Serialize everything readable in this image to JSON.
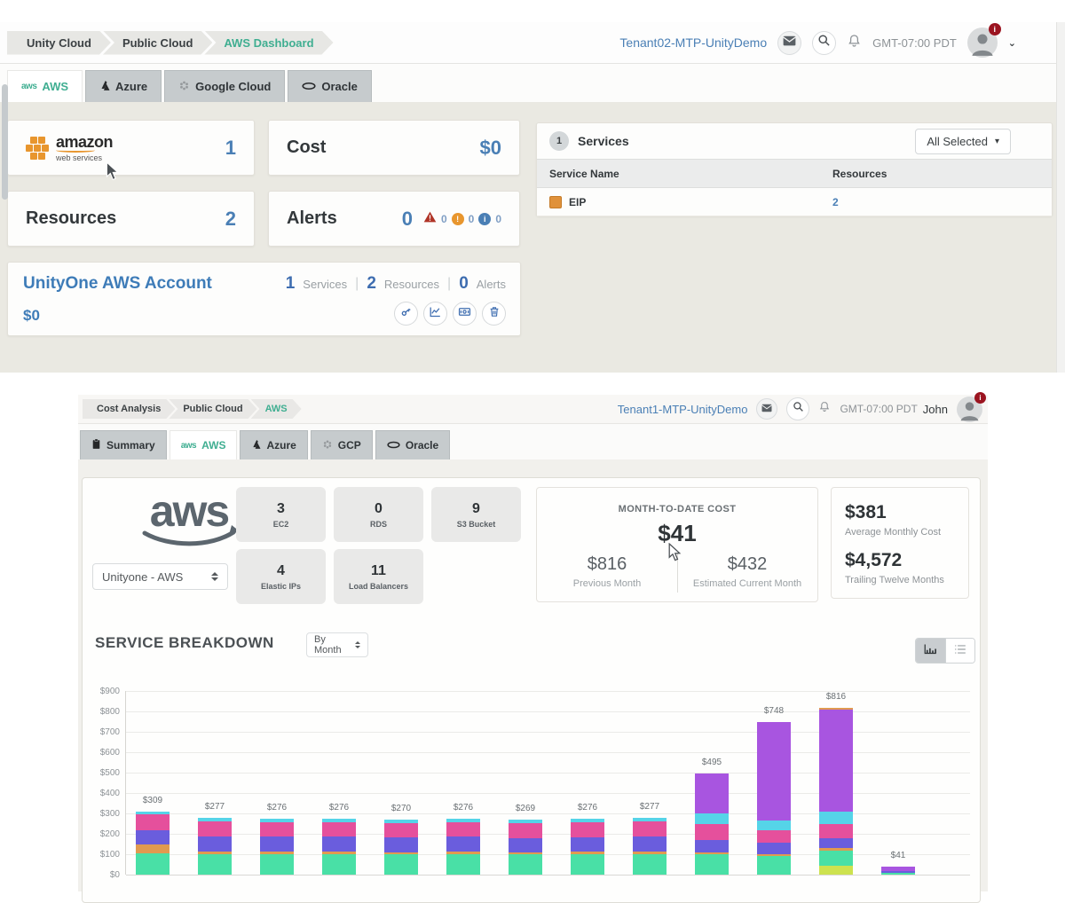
{
  "accent": {
    "teal": "#3fae91",
    "blue": "#4a7fb5"
  },
  "shot1": {
    "breadcrumb": {
      "items": [
        "Unity Cloud",
        "Public Cloud",
        "AWS Dashboard"
      ]
    },
    "header": {
      "tenant": "Tenant02-MTP-UnityDemo",
      "timezone": "GMT-07:00 PDT"
    },
    "tabs": {
      "aws": "AWS",
      "azure": "Azure",
      "gcp": "Google Cloud",
      "oracle": "Oracle"
    },
    "provider_card": {
      "brand": "amazon",
      "brand_sub": "web services",
      "count": "1"
    },
    "cost_card": {
      "label": "Cost",
      "value": "$0"
    },
    "resources_card": {
      "label": "Resources",
      "value": "2"
    },
    "alerts_card": {
      "label": "Alerts",
      "value": "0",
      "critical_count": "0",
      "warning_count": "0",
      "info_count": "0"
    },
    "services_panel": {
      "count": "1",
      "title": "Services",
      "filter_label": "All Selected",
      "col_service": "Service Name",
      "col_resources": "Resources",
      "row": {
        "name": "EIP",
        "resources": "2"
      }
    },
    "account_card": {
      "title": "UnityOne AWS Account",
      "cost": "$0",
      "services_value": "1",
      "services_label": "Services",
      "resources_value": "2",
      "resources_label": "Resources",
      "alerts_value": "0",
      "alerts_label": "Alerts"
    }
  },
  "shot2": {
    "breadcrumb": {
      "items": [
        "Cost Analysis",
        "Public Cloud",
        "AWS"
      ]
    },
    "header": {
      "tenant": "Tenant1-MTP-UnityDemo",
      "timezone": "GMT-07:00 PDT",
      "user": "John"
    },
    "tabs": {
      "summary": "Summary",
      "aws": "AWS",
      "azure": "Azure",
      "gcp": "GCP",
      "oracle": "Oracle"
    },
    "aws_logo": "aws",
    "account_select": {
      "value": "Unityone - AWS"
    },
    "tiles": [
      {
        "value": "3",
        "label": "EC2"
      },
      {
        "value": "0",
        "label": "RDS"
      },
      {
        "value": "9",
        "label": "S3 Bucket"
      },
      {
        "value": "4",
        "label": "Elastic IPs"
      },
      {
        "value": "11",
        "label": "Load Balancers"
      }
    ],
    "mtd_card": {
      "title": "MONTH-TO-DATE COST",
      "value": "$41",
      "previous_value": "$816",
      "previous_label": "Previous Month",
      "estimated_value": "$432",
      "estimated_label": "Estimated Current Month"
    },
    "summary_card": {
      "avg_value": "$381",
      "avg_label": "Average Monthly Cost",
      "ttm_value": "$4,572",
      "ttm_label": "Trailing Twelve Months"
    },
    "breakdown": {
      "title": "SERVICE BREAKDOWN",
      "period": "By Month"
    }
  },
  "chart_data": {
    "type": "bar",
    "stacked": true,
    "title": "SERVICE BREAKDOWN",
    "ylim": [
      0,
      900
    ],
    "y_ticks": [
      "$900",
      "$800",
      "$700",
      "$600",
      "$500",
      "$400",
      "$300",
      "$200",
      "$100",
      "$0"
    ],
    "grid": true,
    "palette": {
      "mint": "#49e0a6",
      "lime": "#cde24f",
      "orange": "#e09a50",
      "indigo": "#6a5ddd",
      "pink": "#e5509c",
      "cyan": "#55d4e8",
      "violet": "#a855e0"
    },
    "bars": [
      {
        "label": "$309",
        "total": 309,
        "segments": [
          [
            "mint",
            105
          ],
          [
            "orange",
            42
          ],
          [
            "indigo",
            72
          ],
          [
            "pink",
            76
          ],
          [
            "cyan",
            14
          ]
        ]
      },
      {
        "label": "$277",
        "total": 277,
        "segments": [
          [
            "mint",
            100
          ],
          [
            "orange",
            12
          ],
          [
            "indigo",
            75
          ],
          [
            "pink",
            72
          ],
          [
            "cyan",
            18
          ]
        ]
      },
      {
        "label": "$276",
        "total": 276,
        "segments": [
          [
            "mint",
            100
          ],
          [
            "orange",
            11
          ],
          [
            "indigo",
            75
          ],
          [
            "pink",
            72
          ],
          [
            "cyan",
            18
          ]
        ]
      },
      {
        "label": "$276",
        "total": 276,
        "segments": [
          [
            "mint",
            100
          ],
          [
            "orange",
            12
          ],
          [
            "indigo",
            74
          ],
          [
            "pink",
            72
          ],
          [
            "cyan",
            18
          ]
        ]
      },
      {
        "label": "$270",
        "total": 270,
        "segments": [
          [
            "mint",
            98
          ],
          [
            "orange",
            12
          ],
          [
            "indigo",
            72
          ],
          [
            "pink",
            70
          ],
          [
            "cyan",
            18
          ]
        ]
      },
      {
        "label": "$276",
        "total": 276,
        "segments": [
          [
            "mint",
            100
          ],
          [
            "orange",
            11
          ],
          [
            "indigo",
            74
          ],
          [
            "pink",
            73
          ],
          [
            "cyan",
            18
          ]
        ]
      },
      {
        "label": "$269",
        "total": 269,
        "segments": [
          [
            "mint",
            98
          ],
          [
            "orange",
            12
          ],
          [
            "indigo",
            70
          ],
          [
            "pink",
            71
          ],
          [
            "cyan",
            18
          ]
        ]
      },
      {
        "label": "$276",
        "total": 276,
        "segments": [
          [
            "mint",
            100
          ],
          [
            "orange",
            12
          ],
          [
            "indigo",
            72
          ],
          [
            "pink",
            74
          ],
          [
            "cyan",
            18
          ]
        ]
      },
      {
        "label": "$277",
        "total": 277,
        "segments": [
          [
            "mint",
            100
          ],
          [
            "orange",
            12
          ],
          [
            "indigo",
            74
          ],
          [
            "pink",
            73
          ],
          [
            "cyan",
            18
          ]
        ]
      },
      {
        "label": "$495",
        "total": 495,
        "segments": [
          [
            "mint",
            100
          ],
          [
            "orange",
            10
          ],
          [
            "indigo",
            60
          ],
          [
            "pink",
            80
          ],
          [
            "cyan",
            48
          ],
          [
            "violet",
            197
          ]
        ]
      },
      {
        "label": "$748",
        "total": 748,
        "segments": [
          [
            "mint",
            90
          ],
          [
            "orange",
            10
          ],
          [
            "indigo",
            55
          ],
          [
            "pink",
            62
          ],
          [
            "cyan",
            48
          ],
          [
            "violet",
            483
          ]
        ]
      },
      {
        "label": "$816",
        "total": 816,
        "segments": [
          [
            "lime",
            45
          ],
          [
            "mint",
            74
          ],
          [
            "orange",
            12
          ],
          [
            "indigo",
            48
          ],
          [
            "pink",
            70
          ],
          [
            "cyan",
            60
          ],
          [
            "violet",
            500
          ],
          [
            "orange",
            7
          ]
        ]
      },
      {
        "label": "$41",
        "total": 41,
        "segments": [
          [
            "mint",
            8
          ],
          [
            "indigo",
            10
          ],
          [
            "violet",
            23
          ]
        ]
      }
    ]
  }
}
